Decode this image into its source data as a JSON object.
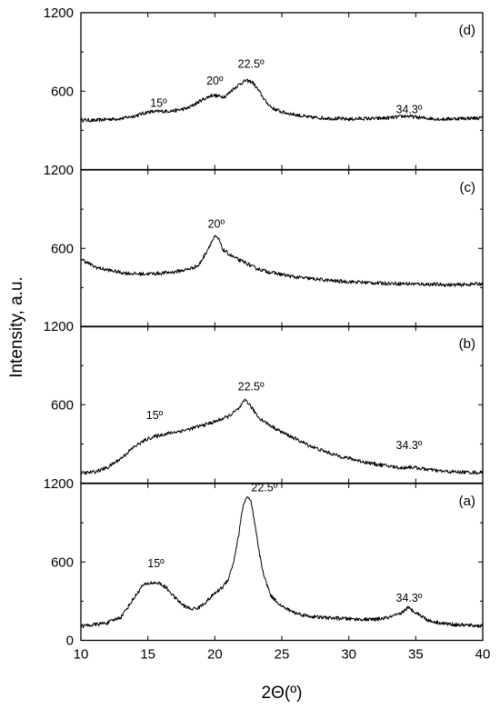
{
  "chart_data": {
    "type": "line",
    "xlabel": "2Θ(º)",
    "ylabel": "Intensity, a.u.",
    "xlim": [
      10,
      40
    ],
    "xticks": [
      10,
      15,
      20,
      25,
      30,
      35,
      40
    ],
    "ylim": [
      0,
      1200
    ],
    "yticks": [
      0,
      600,
      1200
    ],
    "grid": false,
    "legend": "none",
    "line_color": "#000000",
    "panels": [
      {
        "label": "(d)",
        "ytick_labels": [
          "600",
          "1200"
        ],
        "annotations": [
          {
            "text": "15º",
            "x": 15.8,
            "y": 480
          },
          {
            "text": "20º",
            "x": 20.0,
            "y": 650
          },
          {
            "text": "22.5º",
            "x": 22.7,
            "y": 780
          },
          {
            "text": "34.3º",
            "x": 34.5,
            "y": 430
          }
        ],
        "points": [
          [
            10,
            380
          ],
          [
            11,
            375
          ],
          [
            12,
            385
          ],
          [
            13,
            390
          ],
          [
            14,
            410
          ],
          [
            15,
            440
          ],
          [
            16,
            445
          ],
          [
            17,
            450
          ],
          [
            18,
            470
          ],
          [
            19,
            530
          ],
          [
            19.8,
            570
          ],
          [
            20.3,
            560
          ],
          [
            20.8,
            560
          ],
          [
            21.3,
            610
          ],
          [
            21.8,
            650
          ],
          [
            22.3,
            680
          ],
          [
            22.8,
            670
          ],
          [
            23.3,
            600
          ],
          [
            23.8,
            520
          ],
          [
            24.3,
            470
          ],
          [
            25,
            440
          ],
          [
            26,
            420
          ],
          [
            27,
            400
          ],
          [
            28,
            395
          ],
          [
            29,
            390
          ],
          [
            30,
            385
          ],
          [
            31,
            390
          ],
          [
            32,
            390
          ],
          [
            33,
            395
          ],
          [
            34.3,
            410
          ],
          [
            35.5,
            395
          ],
          [
            37,
            385
          ],
          [
            38,
            390
          ],
          [
            40,
            395
          ]
        ]
      },
      {
        "label": "(c)",
        "ytick_labels": [
          "600",
          "1200"
        ],
        "annotations": [
          {
            "text": "20º",
            "x": 20.1,
            "y": 760
          }
        ],
        "points": [
          [
            10,
            520
          ],
          [
            10.5,
            490
          ],
          [
            11,
            460
          ],
          [
            11.5,
            445
          ],
          [
            12,
            435
          ],
          [
            13,
            415
          ],
          [
            14,
            405
          ],
          [
            15,
            405
          ],
          [
            16,
            410
          ],
          [
            17,
            420
          ],
          [
            18,
            440
          ],
          [
            18.8,
            470
          ],
          [
            19.3,
            560
          ],
          [
            19.7,
            640
          ],
          [
            20.0,
            690
          ],
          [
            20.3,
            670
          ],
          [
            20.6,
            590
          ],
          [
            21.0,
            560
          ],
          [
            21.3,
            540
          ],
          [
            21.8,
            510
          ],
          [
            22.3,
            490
          ],
          [
            23,
            450
          ],
          [
            24,
            420
          ],
          [
            25,
            400
          ],
          [
            26,
            380
          ],
          [
            27,
            370
          ],
          [
            28,
            360
          ],
          [
            29,
            350
          ],
          [
            30,
            345
          ],
          [
            32,
            335
          ],
          [
            34,
            330
          ],
          [
            36,
            325
          ],
          [
            38,
            320
          ],
          [
            40,
            330
          ]
        ]
      },
      {
        "label": "(b)",
        "ytick_labels": [
          "600",
          "1200"
        ],
        "annotations": [
          {
            "text": "15º",
            "x": 15.5,
            "y": 490
          },
          {
            "text": "22.5º",
            "x": 22.7,
            "y": 710
          },
          {
            "text": "34.3º",
            "x": 34.5,
            "y": 260
          }
        ],
        "points": [
          [
            10,
            75
          ],
          [
            11,
            85
          ],
          [
            12,
            120
          ],
          [
            13,
            190
          ],
          [
            14,
            280
          ],
          [
            15,
            340
          ],
          [
            16,
            370
          ],
          [
            17,
            390
          ],
          [
            18,
            410
          ],
          [
            19,
            440
          ],
          [
            20,
            470
          ],
          [
            21,
            510
          ],
          [
            21.8,
            570
          ],
          [
            22.3,
            640
          ],
          [
            22.8,
            570
          ],
          [
            23.3,
            500
          ],
          [
            24,
            450
          ],
          [
            25,
            390
          ],
          [
            26,
            340
          ],
          [
            27,
            290
          ],
          [
            28,
            250
          ],
          [
            29,
            215
          ],
          [
            30,
            190
          ],
          [
            31,
            165
          ],
          [
            32,
            145
          ],
          [
            33,
            130
          ],
          [
            34,
            115
          ],
          [
            34.5,
            125
          ],
          [
            35.5,
            110
          ],
          [
            37,
            90
          ],
          [
            38,
            85
          ],
          [
            40,
            80
          ]
        ]
      },
      {
        "label": "(a)",
        "ytick_labels": [
          "0",
          "600",
          "1200"
        ],
        "annotations": [
          {
            "text": "15º",
            "x": 15.6,
            "y": 560
          },
          {
            "text": "22.5º",
            "x": 23.7,
            "y": 1140
          },
          {
            "text": "34.3º",
            "x": 34.5,
            "y": 295
          }
        ],
        "points": [
          [
            10,
            110
          ],
          [
            11,
            120
          ],
          [
            12,
            135
          ],
          [
            13,
            180
          ],
          [
            14,
            330
          ],
          [
            14.6,
            420
          ],
          [
            15.2,
            440
          ],
          [
            15.8,
            440
          ],
          [
            16.4,
            400
          ],
          [
            17,
            330
          ],
          [
            17.6,
            270
          ],
          [
            18.2,
            240
          ],
          [
            18.8,
            250
          ],
          [
            19.4,
            300
          ],
          [
            20,
            360
          ],
          [
            20.6,
            410
          ],
          [
            21,
            470
          ],
          [
            21.4,
            600
          ],
          [
            21.8,
            820
          ],
          [
            22.1,
            1030
          ],
          [
            22.4,
            1100
          ],
          [
            22.7,
            1060
          ],
          [
            23.0,
            880
          ],
          [
            23.3,
            680
          ],
          [
            23.7,
            480
          ],
          [
            24.2,
            340
          ],
          [
            25,
            260
          ],
          [
            26,
            210
          ],
          [
            27,
            185
          ],
          [
            28,
            175
          ],
          [
            29,
            170
          ],
          [
            30,
            165
          ],
          [
            31,
            160
          ],
          [
            32,
            160
          ],
          [
            33,
            175
          ],
          [
            33.8,
            200
          ],
          [
            34.4,
            250
          ],
          [
            35,
            215
          ],
          [
            36,
            150
          ],
          [
            37,
            130
          ],
          [
            38,
            120
          ],
          [
            39,
            115
          ],
          [
            40,
            110
          ]
        ]
      }
    ]
  }
}
